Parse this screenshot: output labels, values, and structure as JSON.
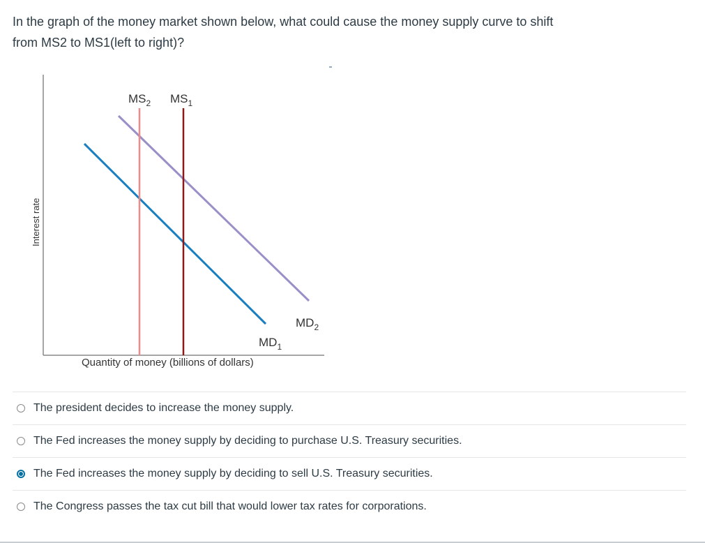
{
  "question": {
    "line1": "In the graph of the money market shown below, what could cause the money supply curve to shift",
    "line2": "from MS2 to MS1(left to right)?"
  },
  "graph": {
    "ylabel": "Interest rate",
    "xlabel": "Quantity of money (billions of dollars)",
    "ms2_label": "MS",
    "ms2_sub": "2",
    "ms1_label": "MS",
    "ms1_sub": "1",
    "md1_label": "MD",
    "md1_sub": "1",
    "md2_label": "MD",
    "md2_sub": "2",
    "colors": {
      "ms2": "#f08a8a",
      "ms1": "#8b1a1a",
      "md1": "#1a7fc1",
      "md2": "#9b8fc8",
      "axis": "#888888"
    }
  },
  "answers": [
    {
      "text": "The president decides to increase the money supply.",
      "selected": false
    },
    {
      "text": "The Fed increases the money supply by deciding to purchase U.S. Treasury securities.",
      "selected": false
    },
    {
      "text": "The Fed increases the money supply by deciding to sell U.S. Treasury securities.",
      "selected": true
    },
    {
      "text": "The Congress passes the tax cut bill that would lower tax rates for corporations.",
      "selected": false
    }
  ]
}
